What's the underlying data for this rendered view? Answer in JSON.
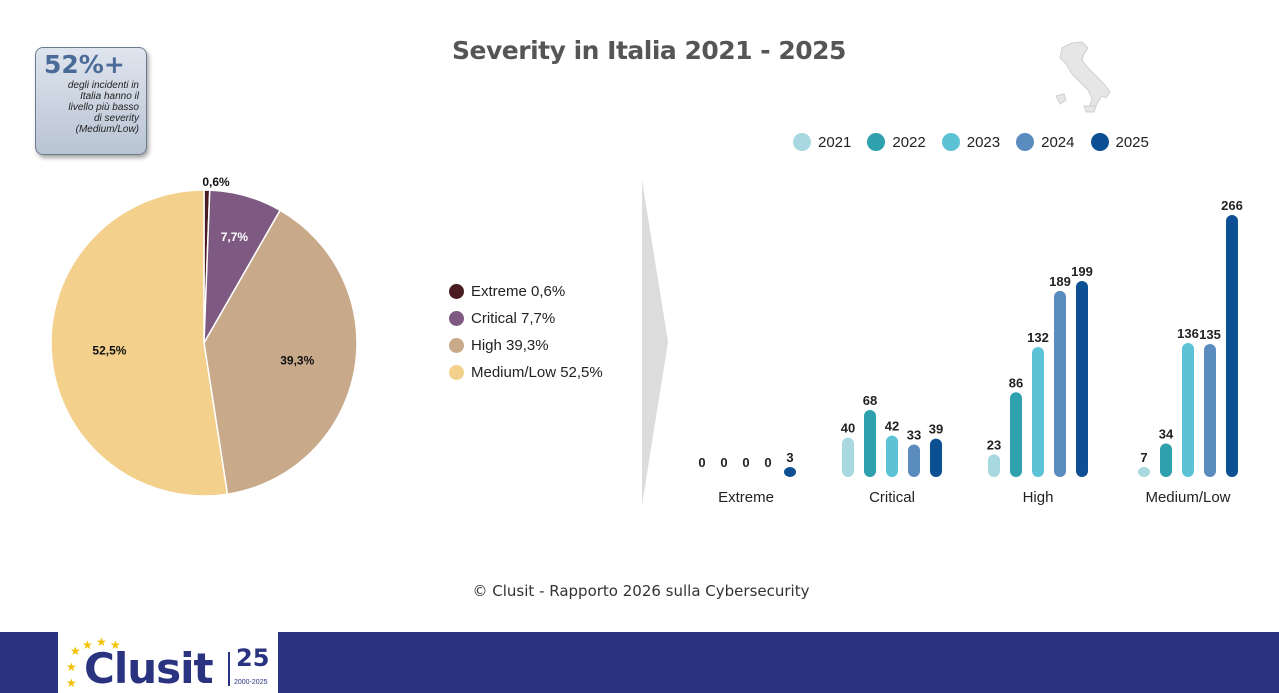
{
  "title": "Severity in Italia 2021 - 2025",
  "callout": {
    "pct": "52%+",
    "desc_lines": [
      "degli incidenti in",
      "Italia hanno il",
      "livello più basso",
      "di severity",
      "(Medium/Low)"
    ]
  },
  "chart_data": [
    {
      "type": "pie",
      "categories": [
        "Extreme",
        "Critical",
        "High",
        "Medium/Low"
      ],
      "values": [
        0.6,
        7.7,
        39.3,
        52.5
      ],
      "value_labels": [
        "0,6%",
        "7,7%",
        "39,3%",
        "52,5%"
      ],
      "legend_labels": [
        "Extreme 0,6%",
        "Critical 7,7%",
        "High 39,3%",
        "Medium/Low 52,5%"
      ],
      "colors": [
        "#4a1c22",
        "#7e5a83",
        "#c8a98a",
        "#f3d08c"
      ]
    },
    {
      "type": "bar",
      "categories": [
        "Extreme",
        "Critical",
        "High",
        "Medium/Low"
      ],
      "series": [
        {
          "name": "2021",
          "values": [
            0,
            40,
            23,
            7
          ],
          "color": "#a8d8e0"
        },
        {
          "name": "2022",
          "values": [
            0,
            68,
            86,
            34
          ],
          "color": "#2fa0ad"
        },
        {
          "name": "2023",
          "values": [
            0,
            42,
            132,
            136
          ],
          "color": "#5cc3d6"
        },
        {
          "name": "2024",
          "values": [
            0,
            33,
            189,
            135
          ],
          "color": "#5b8cc0"
        },
        {
          "name": "2025",
          "values": [
            3,
            39,
            199,
            266
          ],
          "color": "#0d4f93"
        }
      ],
      "ylim": [
        0,
        266
      ]
    }
  ],
  "footer": {
    "copyright": "© Clusit - Rapporto 2026 sulla Cybersecurity",
    "logo_name": "Clusit",
    "logo_25": "25",
    "logo_years": "2000-2025"
  },
  "icons": {
    "map": "italy-map-icon",
    "arrow": "chevron-arrow-icon"
  }
}
